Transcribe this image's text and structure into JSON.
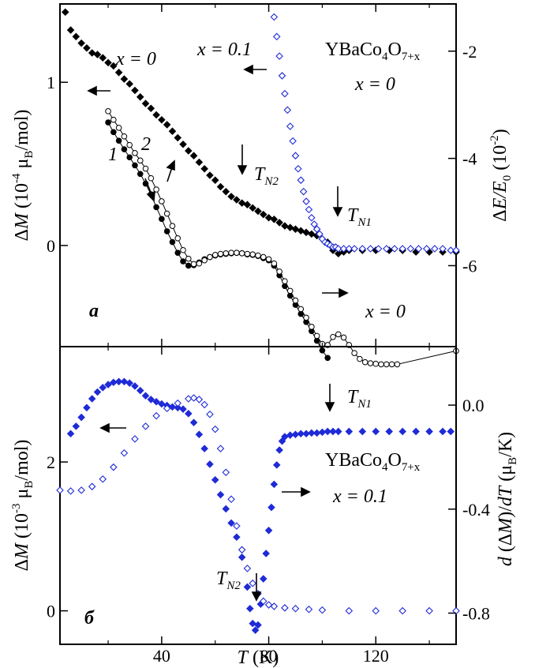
{
  "chart_data": [
    {
      "panel": "a",
      "type": "scatter",
      "panel_label": "a",
      "ylabel_left": {
        "pre": "Δ",
        "var": "M",
        "text": " (10",
        "exp": "-4",
        "mid": " μ",
        "sub": "B",
        "post": "/mol)"
      },
      "ylabel_right": {
        "pre": "Δ",
        "var": "E/E",
        "sub": "0",
        "post": " (10",
        "exp": "-2",
        "close": ")"
      },
      "compound": {
        "base": "YBaCo",
        "s1": "4",
        "mid": "O",
        "s2": "7+x"
      },
      "annotations": {
        "x0_left": "x = 0",
        "x01": "x = 0.1",
        "x0_top_right": "x = 0",
        "x0_bottom_right": "x = 0",
        "curve1": "1",
        "curve2": "2",
        "TN1": {
          "t": "T",
          "s": "N1"
        },
        "TN2": {
          "t": "T",
          "s": "N2"
        }
      },
      "xlim": [
        2,
        150
      ],
      "ylim_left": [
        -0.62,
        1.48
      ],
      "ylim_right": [
        -7.51,
        -1.12
      ],
      "yticks_left": [
        0,
        1
      ],
      "yticks_right": [
        -2,
        -4,
        -6
      ],
      "series": [
        {
          "marker": "filled-diamond",
          "color": "#000000",
          "axis": "left",
          "x": [
            4,
            6,
            8,
            10,
            12,
            14,
            16,
            18,
            20,
            22,
            24,
            26,
            28,
            30,
            32,
            34,
            36,
            38,
            40,
            42,
            44,
            46,
            48,
            50,
            52,
            54,
            56,
            58,
            60,
            62,
            64,
            66,
            68,
            70,
            72,
            74,
            76,
            78,
            80,
            82,
            84,
            86,
            88,
            90,
            92,
            94,
            96,
            98,
            100,
            102,
            104,
            106,
            108,
            110,
            115,
            120,
            125,
            130,
            135,
            140,
            145,
            150
          ],
          "y": [
            1.43,
            1.32,
            1.28,
            1.24,
            1.21,
            1.18,
            1.17,
            1.15,
            1.12,
            1.1,
            1.06,
            1.02,
            0.99,
            0.95,
            0.91,
            0.87,
            0.84,
            0.8,
            0.77,
            0.74,
            0.7,
            0.66,
            0.62,
            0.58,
            0.55,
            0.51,
            0.47,
            0.43,
            0.4,
            0.36,
            0.33,
            0.3,
            0.28,
            0.26,
            0.25,
            0.23,
            0.21,
            0.19,
            0.17,
            0.16,
            0.14,
            0.12,
            0.11,
            0.1,
            0.09,
            0.08,
            0.07,
            0.06,
            0.04,
            0.02,
            -0.03,
            -0.05,
            -0.04,
            -0.03,
            -0.03,
            -0.03,
            -0.03,
            -0.03,
            -0.04,
            -0.04,
            -0.04,
            -0.04
          ]
        },
        {
          "marker": "open-diamond",
          "color": "#1f2bd6",
          "axis": "left",
          "x": [
            82,
            83,
            84,
            85,
            86,
            87,
            88,
            89,
            90,
            91,
            92,
            93,
            94,
            95,
            96,
            97,
            98,
            99,
            100,
            101,
            102,
            103,
            104,
            105,
            106,
            108,
            110,
            112,
            115,
            118,
            121,
            124,
            127,
            130,
            133,
            136,
            139,
            142,
            145,
            148,
            150
          ],
          "y": [
            1.4,
            1.28,
            1.16,
            1.04,
            0.93,
            0.83,
            0.73,
            0.64,
            0.55,
            0.47,
            0.4,
            0.33,
            0.27,
            0.22,
            0.17,
            0.13,
            0.1,
            0.07,
            0.04,
            0.02,
            0.01,
            0.0,
            -0.01,
            -0.01,
            -0.02,
            -0.02,
            -0.02,
            -0.02,
            -0.02,
            -0.02,
            -0.02,
            -0.02,
            -0.02,
            -0.02,
            -0.02,
            -0.02,
            -0.02,
            -0.02,
            -0.02,
            -0.03,
            -0.03
          ]
        },
        {
          "marker": "filled-circle",
          "color": "#000000",
          "axis": "right",
          "name": "1",
          "x": [
            20,
            22,
            24,
            26,
            28,
            30,
            32,
            34,
            36,
            38,
            40,
            42,
            44,
            46,
            48,
            50,
            52,
            54,
            56,
            58,
            60,
            62,
            64,
            66,
            68,
            70,
            72,
            74,
            76,
            78,
            80,
            82,
            84,
            86,
            88,
            90,
            92,
            94,
            96,
            98,
            100,
            102
          ],
          "y": [
            -3.33,
            -3.51,
            -3.67,
            -3.83,
            -3.98,
            -4.13,
            -4.29,
            -4.47,
            -4.67,
            -4.91,
            -5.13,
            -5.36,
            -5.56,
            -5.76,
            -5.92,
            -6.0,
            -5.99,
            -5.94,
            -5.88,
            -5.84,
            -5.81,
            -5.79,
            -5.78,
            -5.77,
            -5.76,
            -5.77,
            -5.79,
            -5.8,
            -5.82,
            -5.86,
            -5.9,
            -6.0,
            -6.18,
            -6.38,
            -6.56,
            -6.73,
            -6.9,
            -7.05,
            -7.22,
            -7.4,
            -7.58,
            -7.72
          ]
        },
        {
          "marker": "open-circle",
          "color": "#000000",
          "axis": "right",
          "name": "2",
          "x": [
            20,
            22,
            24,
            26,
            28,
            30,
            32,
            34,
            36,
            38,
            40,
            42,
            44,
            46,
            48,
            50,
            52,
            54,
            56,
            58,
            60,
            62,
            64,
            66,
            68,
            70,
            72,
            74,
            76,
            78,
            80,
            82,
            84,
            86,
            88,
            90,
            92,
            94,
            96,
            98,
            100,
            102,
            104,
            106,
            108,
            110,
            112,
            114,
            116,
            118,
            120,
            122,
            124,
            126,
            128,
            150
          ],
          "y": [
            -3.12,
            -3.28,
            -3.43,
            -3.59,
            -3.75,
            -3.9,
            -4.04,
            -4.19,
            -4.37,
            -4.58,
            -4.8,
            -5.03,
            -5.26,
            -5.49,
            -5.71,
            -5.87,
            -5.97,
            -5.96,
            -5.9,
            -5.84,
            -5.8,
            -5.78,
            -5.77,
            -5.76,
            -5.76,
            -5.77,
            -5.78,
            -5.79,
            -5.81,
            -5.84,
            -5.88,
            -5.96,
            -6.11,
            -6.29,
            -6.47,
            -6.65,
            -6.81,
            -6.97,
            -7.14,
            -7.31,
            -7.46,
            -7.48,
            -7.33,
            -7.28,
            -7.34,
            -7.48,
            -7.63,
            -7.74,
            -7.8,
            -7.82,
            -7.83,
            -7.84,
            -7.84,
            -7.84,
            -7.84,
            -7.59
          ]
        }
      ]
    },
    {
      "panel": "b",
      "type": "scatter",
      "panel_label": "б",
      "xlabel": {
        "var": "T",
        "text": " (K)"
      },
      "ylabel_left": {
        "pre": "Δ",
        "var": "M",
        "text": " (10",
        "exp": "-3",
        "mid": " μ",
        "sub": "B",
        "post": "/mol)"
      },
      "ylabel_right": {
        "var": "d",
        "text": " (Δ",
        "var2": "M",
        "text2": ")/",
        "var3": "dT",
        "post": " (μ",
        "sub": "B",
        "close": "/K)"
      },
      "compound": {
        "base": "YBaCo",
        "s1": "4",
        "mid": "O",
        "s2": "7+x"
      },
      "annotations": {
        "x01": "x = 0.1",
        "TN1": {
          "t": "T",
          "s": "N1"
        },
        "TN2": {
          "t": "T",
          "s": "N2"
        }
      },
      "xlim": [
        2,
        150
      ],
      "ylim_left": [
        -0.45,
        3.55
      ],
      "ylim_right": [
        -0.92,
        0.225
      ],
      "xticks": [
        40,
        80,
        120
      ],
      "yticks_left": [
        0,
        2
      ],
      "yticks_right": [
        0.0,
        -0.4,
        -0.8
      ],
      "yticks_right_labels": [
        "0.0",
        "-0.4",
        "-0.8"
      ],
      "series": [
        {
          "marker": "filled-diamond",
          "color": "#1f2bd6",
          "axis": "left",
          "name": "ΔM",
          "x": [
            6,
            8,
            10,
            12,
            14,
            16,
            18,
            20,
            22,
            24,
            26,
            28,
            30,
            32,
            34,
            36,
            38,
            40,
            42,
            44,
            46,
            48,
            50,
            52,
            54,
            56,
            58,
            60,
            62,
            64,
            66,
            68,
            70,
            72,
            73,
            74,
            75,
            76,
            77,
            78,
            79,
            80,
            81,
            82,
            83,
            84,
            85,
            86,
            88,
            90,
            92,
            94,
            96,
            98,
            100,
            102,
            104,
            106,
            110,
            115,
            120,
            125,
            130,
            135,
            140,
            145,
            148
          ],
          "y": [
            2.38,
            2.48,
            2.6,
            2.73,
            2.85,
            2.94,
            3.0,
            3.04,
            3.07,
            3.08,
            3.08,
            3.06,
            3.02,
            2.96,
            2.89,
            2.84,
            2.81,
            2.78,
            2.76,
            2.74,
            2.73,
            2.71,
            2.65,
            2.53,
            2.37,
            2.18,
            1.97,
            1.76,
            1.56,
            1.37,
            1.18,
            0.99,
            0.72,
            0.32,
            0.03,
            -0.17,
            -0.26,
            -0.19,
            0.09,
            0.43,
            0.77,
            1.08,
            1.39,
            1.7,
            1.96,
            2.16,
            2.28,
            2.34,
            2.36,
            2.37,
            2.38,
            2.38,
            2.39,
            2.39,
            2.4,
            2.41,
            2.41,
            2.41,
            2.41,
            2.41,
            2.41,
            2.41,
            2.41,
            2.41,
            2.41,
            2.41,
            2.41
          ]
        },
        {
          "marker": "open-diamond",
          "color": "#1f2bd6",
          "axis": "left",
          "name": "d(ΔM)/dT",
          "x": [
            2,
            6,
            10,
            14,
            18,
            22,
            26,
            30,
            34,
            38,
            42,
            46,
            50,
            52,
            54,
            56,
            58,
            60,
            62,
            64,
            66,
            68,
            70,
            72,
            74,
            76,
            78,
            80,
            82,
            86,
            90,
            95,
            100,
            110,
            120,
            130,
            140,
            150
          ],
          "y": [
            1.62,
            1.61,
            1.62,
            1.67,
            1.77,
            1.93,
            2.12,
            2.31,
            2.48,
            2.62,
            2.72,
            2.79,
            2.85,
            2.86,
            2.84,
            2.77,
            2.64,
            2.44,
            2.18,
            1.86,
            1.5,
            1.14,
            0.82,
            0.57,
            0.37,
            0.23,
            0.13,
            0.08,
            0.06,
            0.04,
            0.03,
            0.02,
            0.01,
            0.0,
            0.0,
            0.0,
            0.0,
            0.0
          ]
        }
      ]
    }
  ]
}
